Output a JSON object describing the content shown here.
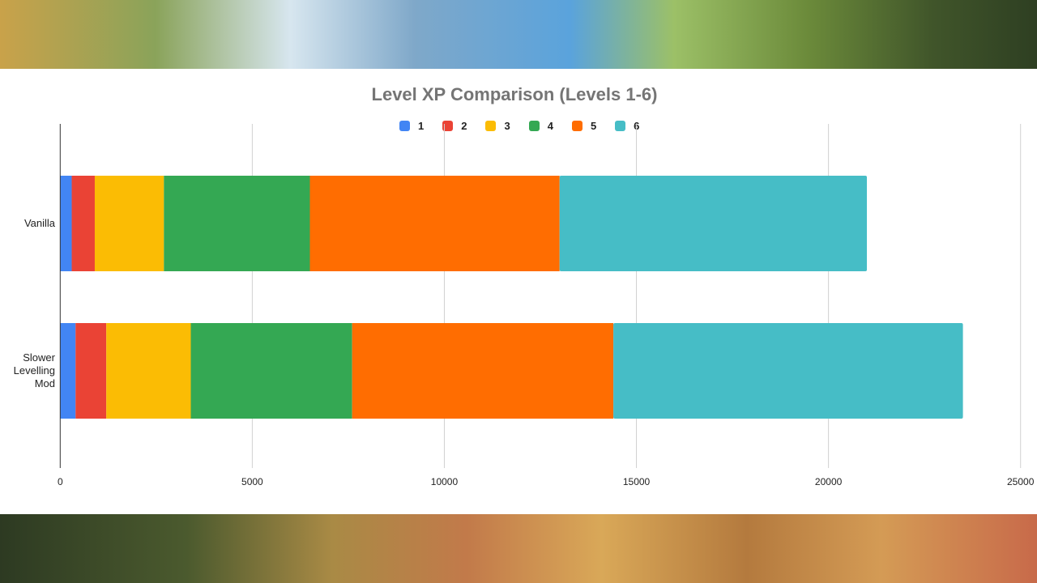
{
  "chart_data": {
    "type": "bar",
    "orientation": "horizontal",
    "stacked": true,
    "title": "Level XP Comparison (Levels 1-6)",
    "categories": [
      "Vanilla",
      "Slower Levelling Mod"
    ],
    "series": [
      {
        "name": "1",
        "color": "#4285f4",
        "values": [
          300,
          400
        ]
      },
      {
        "name": "2",
        "color": "#ea4335",
        "values": [
          600,
          800
        ]
      },
      {
        "name": "3",
        "color": "#fbbc04",
        "values": [
          1800,
          2200
        ]
      },
      {
        "name": "4",
        "color": "#34a853",
        "values": [
          3800,
          4200
        ]
      },
      {
        "name": "5",
        "color": "#ff6d01",
        "values": [
          6500,
          6800
        ]
      },
      {
        "name": "6",
        "color": "#46bdc6",
        "values": [
          8000,
          9100
        ]
      }
    ],
    "xlim": [
      0,
      25000
    ],
    "xticks": [
      "0",
      "5000",
      "10000",
      "15000",
      "20000",
      "25000"
    ],
    "grid": true,
    "legend": "top"
  }
}
